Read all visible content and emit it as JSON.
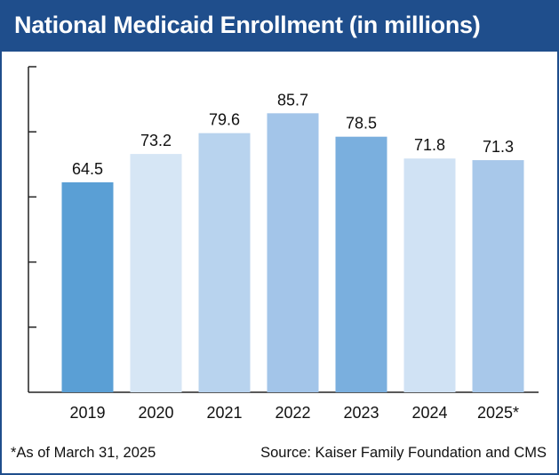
{
  "header": {
    "title": "National Medicaid Enrollment (in millions)"
  },
  "chart_data": {
    "type": "bar",
    "title": "National Medicaid Enrollment (in millions)",
    "categories": [
      "2019",
      "2020",
      "2021",
      "2022",
      "2023",
      "2024",
      "2025*"
    ],
    "values": [
      64.5,
      73.2,
      79.6,
      85.7,
      78.5,
      71.8,
      71.3
    ],
    "data_labels": [
      "64.5",
      "73.2",
      "79.6",
      "85.7",
      "78.5",
      "71.8",
      "71.3"
    ],
    "bar_colors": [
      "#5a9fd5",
      "#d6e6f5",
      "#b8d3ee",
      "#a3c5e9",
      "#7aafde",
      "#d0e2f4",
      "#a8c8ea"
    ],
    "xlabel": "",
    "ylabel": "",
    "ylim": [
      0,
      100
    ],
    "grid": false,
    "y_tick_labels": "none"
  },
  "footer": {
    "footnote": "*As of March 31, 2025",
    "source": "Source: Kaiser Family Foundation and CMS"
  },
  "colors": {
    "header_bg": "#1f4e8c",
    "header_text": "#ffffff",
    "axis": "#222222",
    "border": "#1f4e8c"
  }
}
